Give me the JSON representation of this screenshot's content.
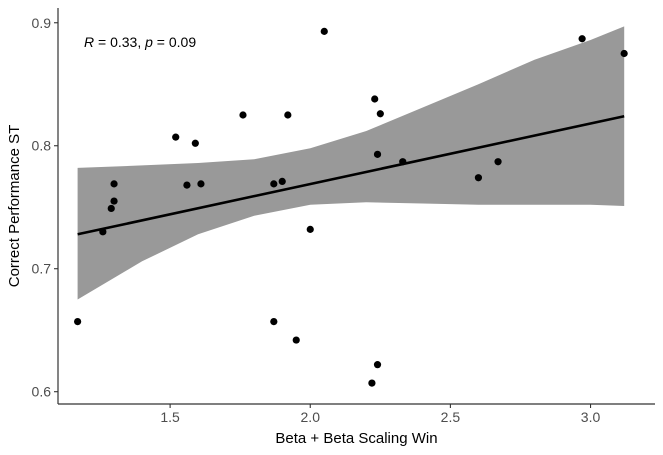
{
  "chart_data": {
    "type": "scatter",
    "title": "",
    "xlabel": "Beta + Beta Scaling Win",
    "ylabel": "Correct Performance ST",
    "xlim": [
      1.1,
      3.23
    ],
    "ylim": [
      0.59,
      0.912
    ],
    "x_ticks": [
      1.5,
      2.0,
      2.5,
      3.0
    ],
    "x_tick_labels": [
      "1.5",
      "2.0",
      "2.5",
      "3.0"
    ],
    "y_ticks": [
      0.6,
      0.7,
      0.8,
      0.9
    ],
    "y_tick_labels": [
      "0.6",
      "0.7",
      "0.8",
      "0.9"
    ],
    "grid": false,
    "annotation": {
      "r_symbol": "R",
      "r_text": " = 0.33, ",
      "p_symbol": "p",
      "p_text": " = 0.09"
    },
    "points": [
      {
        "x": 1.17,
        "y": 0.657
      },
      {
        "x": 1.26,
        "y": 0.73
      },
      {
        "x": 1.29,
        "y": 0.749
      },
      {
        "x": 1.3,
        "y": 0.769
      },
      {
        "x": 1.3,
        "y": 0.755
      },
      {
        "x": 1.52,
        "y": 0.807
      },
      {
        "x": 1.56,
        "y": 0.768
      },
      {
        "x": 1.59,
        "y": 0.802
      },
      {
        "x": 1.61,
        "y": 0.769
      },
      {
        "x": 1.76,
        "y": 0.825
      },
      {
        "x": 1.87,
        "y": 0.657
      },
      {
        "x": 1.87,
        "y": 0.769
      },
      {
        "x": 1.9,
        "y": 0.771
      },
      {
        "x": 1.92,
        "y": 0.825
      },
      {
        "x": 1.95,
        "y": 0.642
      },
      {
        "x": 2.0,
        "y": 0.732
      },
      {
        "x": 2.05,
        "y": 0.893
      },
      {
        "x": 2.22,
        "y": 0.607
      },
      {
        "x": 2.23,
        "y": 0.838
      },
      {
        "x": 2.24,
        "y": 0.622
      },
      {
        "x": 2.24,
        "y": 0.793
      },
      {
        "x": 2.25,
        "y": 0.826
      },
      {
        "x": 2.33,
        "y": 0.787
      },
      {
        "x": 2.6,
        "y": 0.774
      },
      {
        "x": 2.67,
        "y": 0.787
      },
      {
        "x": 2.97,
        "y": 0.887
      },
      {
        "x": 3.12,
        "y": 0.875
      }
    ],
    "fit_line": {
      "x": [
        1.17,
        3.12
      ],
      "y": [
        0.728,
        0.824
      ]
    },
    "confidence_band": {
      "x": [
        1.17,
        1.4,
        1.6,
        1.8,
        2.0,
        2.2,
        2.4,
        2.6,
        2.8,
        3.0,
        3.12
      ],
      "upper": [
        0.782,
        0.784,
        0.786,
        0.789,
        0.798,
        0.812,
        0.831,
        0.85,
        0.87,
        0.886,
        0.897
      ],
      "lower": [
        0.675,
        0.706,
        0.728,
        0.743,
        0.752,
        0.754,
        0.753,
        0.752,
        0.752,
        0.752,
        0.751
      ]
    },
    "colors": {
      "points": "#000000",
      "line": "#000000",
      "band": "#999999",
      "axis": "#333333"
    }
  }
}
